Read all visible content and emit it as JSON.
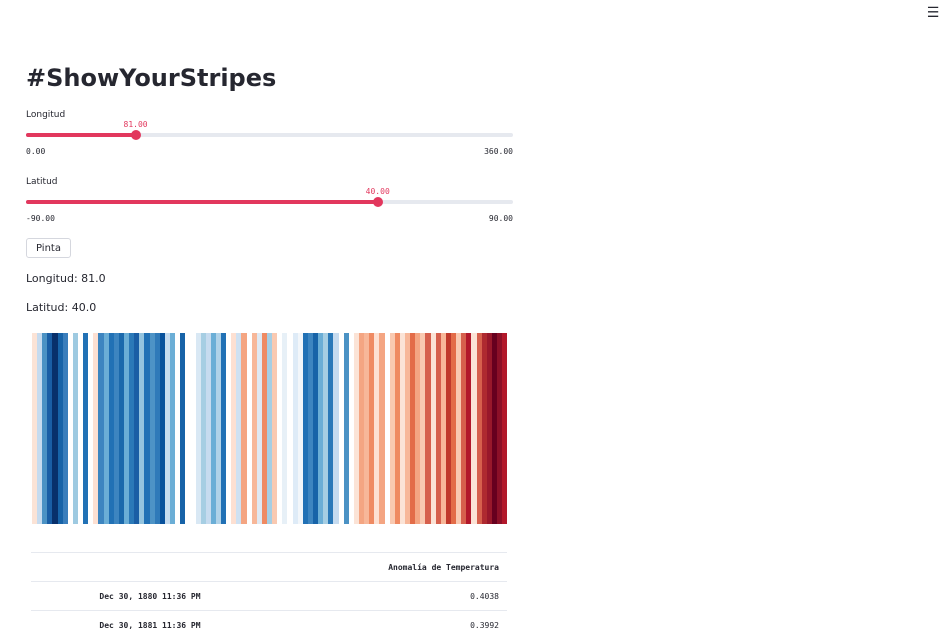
{
  "menu": {
    "icon": "hamburger-menu-icon",
    "glyph": "☰"
  },
  "title": "#ShowYourStripes",
  "sliders": {
    "longitud": {
      "label": "Longitud",
      "value": 81.0,
      "value_text": "81.00",
      "min": 0,
      "max": 360,
      "min_text": "0.00",
      "max_text": "360.00"
    },
    "latitud": {
      "label": "Latitud",
      "value": 40.0,
      "value_text": "40.00",
      "min": -90,
      "max": 90,
      "min_text": "-90.00",
      "max_text": "90.00"
    }
  },
  "colors": {
    "accent": "#e2375d",
    "track": "#e6e9ef",
    "text": "#262730"
  },
  "button": {
    "label": "Pinta"
  },
  "outputs": {
    "longitud": "Longitud: 81.0",
    "latitud": "Latitud: 40.0"
  },
  "stripes": [
    "#fbe3d6",
    "#c6dbef",
    "#4b92c4",
    "#1a5ea5",
    "#08306b",
    "#1763a8",
    "#3a7ebc",
    "#ffffff",
    "#9ecae1",
    "#ffffff",
    "#2171b5",
    "#ffffff",
    "#fde0d2",
    "#3d85c0",
    "#6baed6",
    "#2171b5",
    "#3d85c0",
    "#1b69ac",
    "#6baed6",
    "#2b79b8",
    "#1a5ea5",
    "#94c4df",
    "#2171b5",
    "#4d93c6",
    "#2f7ab9",
    "#08519c",
    "#c6dbef",
    "#6baed6",
    "#ffffff",
    "#1763a8",
    "#ffffff",
    "#ffffff",
    "#d9e8f4",
    "#a6cee3",
    "#c6dbef",
    "#6baed6",
    "#b0d2e8",
    "#2171b5",
    "#ffffff",
    "#fde0d2",
    "#cfe1f2",
    "#f4a582",
    "#ffffff",
    "#f7b799",
    "#dfe9f3",
    "#ef8a62",
    "#a6cee3",
    "#f9c9b1",
    "#ffffff",
    "#e7f0f7",
    "#ffffff",
    "#deebf7",
    "#f2f6fa",
    "#2171b5",
    "#3d85c0",
    "#1763a8",
    "#6baed6",
    "#a6cee3",
    "#2b79b8",
    "#c6dbef",
    "#ffffff",
    "#4b92c4",
    "#ffffff",
    "#fbe3d6",
    "#f4a582",
    "#f7b799",
    "#ef8a62",
    "#fde0d2",
    "#f4a582",
    "#ffffff",
    "#f9c9b1",
    "#ef8a62",
    "#fbe3d6",
    "#f7b799",
    "#e36c48",
    "#f4a582",
    "#f9c9b1",
    "#d6604d",
    "#fbe3d6",
    "#d6604d",
    "#f7b799",
    "#c0392b",
    "#e36c48",
    "#f9c9b1",
    "#d6604d",
    "#b2182b",
    "#fbe3d6",
    "#d6604d",
    "#ae2a30",
    "#98182b",
    "#67001f",
    "#8c1028",
    "#b2182b"
  ],
  "table": {
    "header": [
      "",
      "Anomalía de Temperatura"
    ],
    "rows": [
      {
        "index": "Dec 30, 1880 11:36 PM",
        "value": "0.4038"
      },
      {
        "index": "Dec 30, 1881 11:36 PM",
        "value": "0.3992"
      }
    ]
  }
}
